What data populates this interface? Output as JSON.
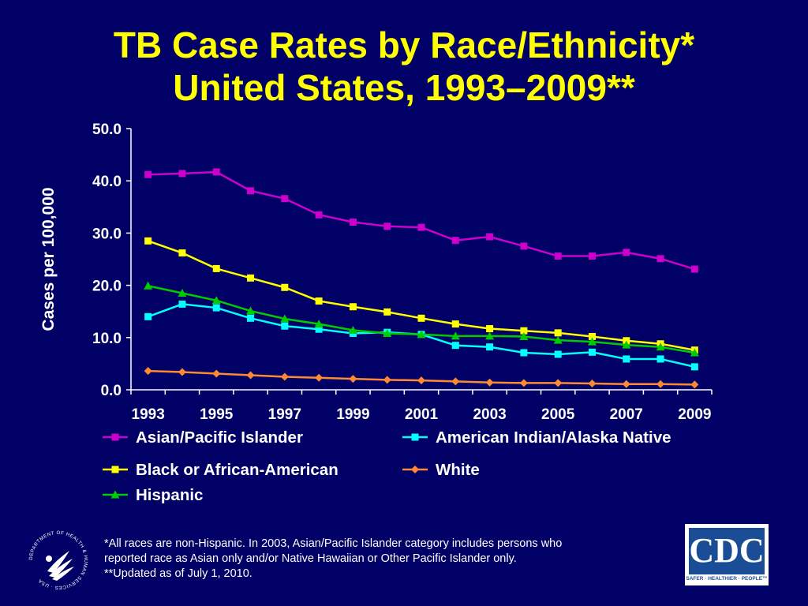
{
  "title": {
    "line1": "TB Case Rates by Race/Ethnicity*",
    "line2": "United States, 1993–2009**"
  },
  "chart_data": {
    "type": "line",
    "title": "TB Case Rates by Race/Ethnicity* United States, 1993–2009**",
    "xlabel": "",
    "ylabel": "Cases per 100,000",
    "x": [
      1993,
      1994,
      1995,
      1996,
      1997,
      1998,
      1999,
      2000,
      2001,
      2002,
      2003,
      2004,
      2005,
      2006,
      2007,
      2008,
      2009
    ],
    "x_tick_labels": [
      "1993",
      "1995",
      "1997",
      "1999",
      "2001",
      "2003",
      "2005",
      "2007",
      "2009"
    ],
    "y_tick_labels": [
      "0.0",
      "10.0",
      "20.0",
      "30.0",
      "40.0",
      "50.0"
    ],
    "ylim": [
      0,
      50
    ],
    "grid": false,
    "legend_position": "bottom",
    "series": [
      {
        "name": "Asian/Pacific Islander",
        "color": "#cc00cc",
        "marker": "square",
        "values": [
          41.2,
          41.4,
          41.7,
          38.1,
          36.6,
          33.5,
          32.1,
          31.3,
          31.1,
          28.6,
          29.3,
          27.5,
          25.6,
          25.6,
          26.3,
          25.1,
          23.1
        ]
      },
      {
        "name": "American Indian/Alaska Native",
        "color": "#00ffff",
        "marker": "square",
        "values": [
          14.0,
          16.4,
          15.7,
          13.7,
          12.2,
          11.6,
          10.8,
          11.0,
          10.6,
          8.5,
          8.2,
          7.1,
          6.8,
          7.2,
          5.9,
          5.9,
          4.4
        ]
      },
      {
        "name": "Black or African-American",
        "color": "#ffff00",
        "marker": "square",
        "values": [
          28.5,
          26.2,
          23.2,
          21.4,
          19.6,
          17.0,
          15.9,
          14.9,
          13.7,
          12.6,
          11.7,
          11.3,
          10.9,
          10.2,
          9.4,
          8.8,
          7.6
        ]
      },
      {
        "name": "White",
        "color": "#ff8833",
        "marker": "diamond",
        "values": [
          3.6,
          3.4,
          3.1,
          2.8,
          2.5,
          2.3,
          2.1,
          1.9,
          1.8,
          1.6,
          1.4,
          1.3,
          1.3,
          1.2,
          1.1,
          1.1,
          1.0
        ]
      },
      {
        "name": "Hispanic",
        "color": "#00cc00",
        "marker": "triangle",
        "values": [
          19.9,
          18.5,
          17.1,
          15.1,
          13.6,
          12.6,
          11.4,
          10.8,
          10.6,
          10.3,
          10.3,
          10.2,
          9.5,
          9.2,
          8.6,
          8.2,
          7.1
        ]
      }
    ]
  },
  "legend": [
    {
      "label": "Asian/Pacific Islander",
      "series": 0
    },
    {
      "label": "American Indian/Alaska Native",
      "series": 1
    },
    {
      "label": "Black or African-American",
      "series": 2
    },
    {
      "label": "White",
      "series": 3
    },
    {
      "label": "Hispanic",
      "series": 4
    }
  ],
  "footnote": {
    "line1": "*All races are non-Hispanic. In 2003, Asian/Pacific Islander category includes persons who",
    "line2": "reported race as Asian only and/or Native Hawaiian or Other Pacific Islander only.",
    "line3": "**Updated as of July 1, 2010."
  },
  "logos": {
    "cdc_text": "CDC",
    "cdc_tagline": "SAFER · HEALTHIER · PEOPLE™",
    "hhs_ring_text": "DEPARTMENT OF HEALTH & HUMAN SERVICES · USA"
  },
  "colors": {
    "background": "#000066",
    "title": "#ffff00",
    "text": "#ffffff"
  }
}
